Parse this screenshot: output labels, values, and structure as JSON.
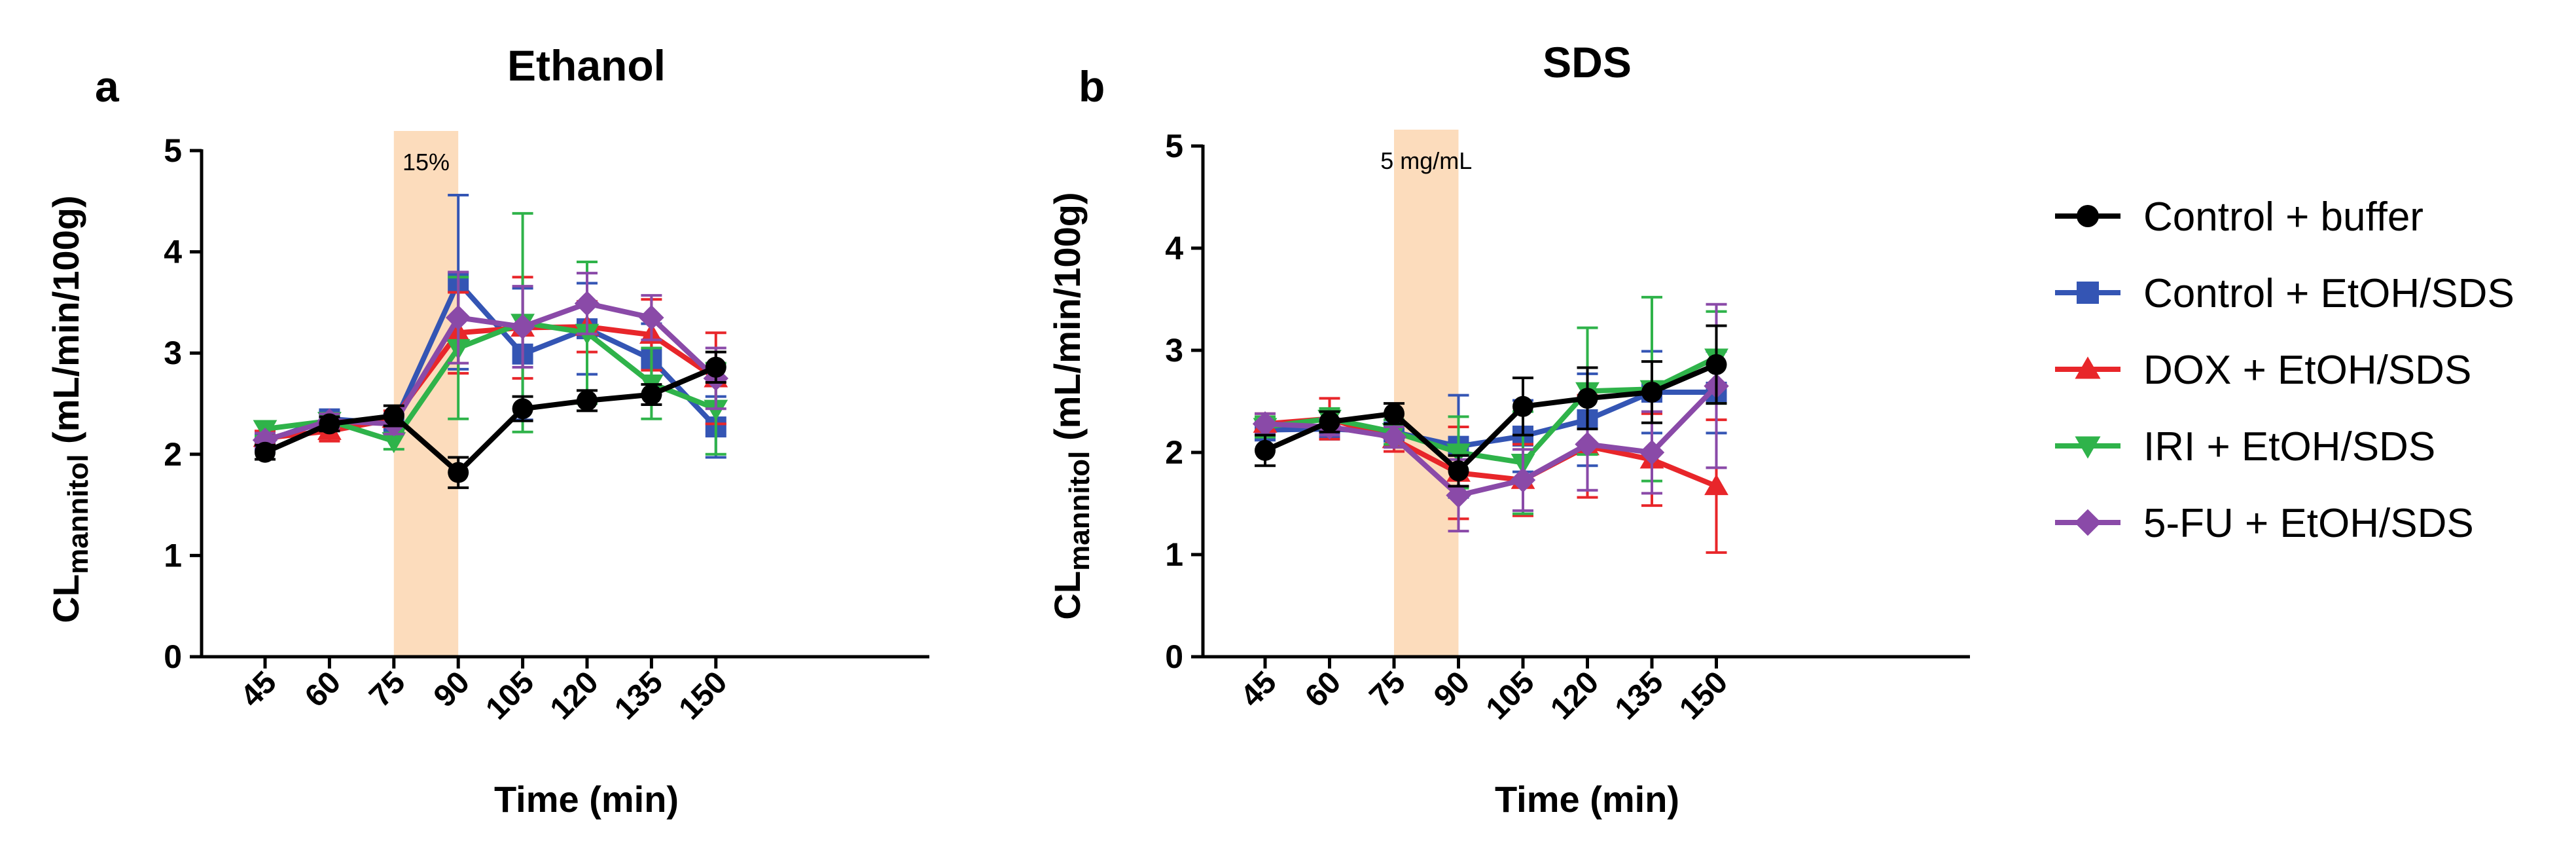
{
  "legend": {
    "entries": [
      {
        "label": "Control + buffer",
        "color": "#000000",
        "marker": "circle"
      },
      {
        "label": "Control + EtOH/SDS",
        "color": "#3455b4",
        "marker": "square"
      },
      {
        "label": "DOX + EtOH/SDS",
        "color": "#e8262a",
        "marker": "triangle-up"
      },
      {
        "label": "IRI + EtOH/SDS",
        "color": "#2fb34a",
        "marker": "triangle-down"
      },
      {
        "label": "5-FU + EtOH/SDS",
        "color": "#8a4aa8",
        "marker": "diamond"
      }
    ]
  },
  "chart_data": [
    {
      "panel_label": "a",
      "type": "line",
      "title": "Ethanol",
      "xlabel": "Time (min)",
      "ylabel_main": "CL",
      "ylabel_sub": "mannitol",
      "ylabel_unit": " (mL/min/100g)",
      "categories": [
        "45",
        "60",
        "75",
        "90",
        "105",
        "120",
        "135",
        "150"
      ],
      "yticks": [
        "0",
        "1",
        "2",
        "3",
        "4",
        "5"
      ],
      "ylim": [
        0,
        5
      ],
      "shaded_region": {
        "from_index": 2,
        "to_index": 3,
        "label": "15%",
        "color": "#fcdcbc"
      },
      "series": [
        {
          "name": "Control + buffer",
          "values": [
            2.02,
            2.3,
            2.38,
            1.82,
            2.45,
            2.53,
            2.59,
            2.86
          ],
          "errors": [
            0.07,
            0.07,
            0.1,
            0.15,
            0.12,
            0.1,
            0.1,
            0.15
          ]
        },
        {
          "name": "Control + EtOH/SDS",
          "values": [
            2.13,
            2.35,
            2.3,
            3.7,
            2.99,
            3.24,
            2.94,
            2.27
          ],
          "errors": [
            0.08,
            0.07,
            0.1,
            0.86,
            0.65,
            0.45,
            0.35,
            0.3
          ]
        },
        {
          "name": "DOX + EtOH/SDS",
          "values": [
            2.16,
            2.23,
            2.35,
            3.2,
            3.25,
            3.26,
            3.18,
            2.75
          ],
          "errors": [
            0.07,
            0.1,
            0.08,
            0.4,
            0.5,
            0.25,
            0.35,
            0.45
          ]
        },
        {
          "name": "IRI + EtOH/SDS",
          "values": [
            2.25,
            2.33,
            2.13,
            3.05,
            3.3,
            3.2,
            2.7,
            2.45
          ],
          "errors": [
            0.07,
            0.07,
            0.08,
            0.7,
            1.08,
            0.7,
            0.35,
            0.45
          ]
        },
        {
          "name": "5-FU + EtOH/SDS",
          "values": [
            2.14,
            2.33,
            2.3,
            3.35,
            3.26,
            3.49,
            3.35,
            2.75
          ],
          "errors": [
            0.07,
            0.07,
            0.1,
            0.45,
            0.4,
            0.3,
            0.22,
            0.3
          ]
        }
      ]
    },
    {
      "panel_label": "b",
      "type": "line",
      "title": "SDS",
      "xlabel": "Time (min)",
      "ylabel_main": "CL",
      "ylabel_sub": "mannitol",
      "ylabel_unit": " (mL/min/100g)",
      "categories": [
        "45",
        "60",
        "75",
        "90",
        "105",
        "120",
        "135",
        "150"
      ],
      "yticks": [
        "0",
        "1",
        "2",
        "3",
        "4",
        "5"
      ],
      "ylim": [
        0,
        5
      ],
      "shaded_region": {
        "from_index": 2,
        "to_index": 3,
        "label": "5 mg/mL",
        "color": "#fcdcbc"
      },
      "series": [
        {
          "name": "Control + buffer",
          "values": [
            2.02,
            2.3,
            2.38,
            1.82,
            2.45,
            2.53,
            2.59,
            2.86
          ],
          "errors": [
            0.15,
            0.1,
            0.1,
            0.15,
            0.28,
            0.3,
            0.3,
            0.38
          ]
        },
        {
          "name": "Control + EtOH/SDS",
          "values": [
            2.22,
            2.23,
            2.2,
            2.06,
            2.16,
            2.32,
            2.59,
            2.59
          ],
          "errors": [
            0.1,
            0.1,
            0.12,
            0.5,
            0.35,
            0.45,
            0.4,
            0.4
          ]
        },
        {
          "name": "DOX + EtOH/SDS",
          "values": [
            2.28,
            2.33,
            2.13,
            1.8,
            1.73,
            2.06,
            1.93,
            1.67
          ],
          "errors": [
            0.1,
            0.2,
            0.12,
            0.45,
            0.35,
            0.5,
            0.45,
            0.65
          ]
        },
        {
          "name": "IRI + EtOH/SDS",
          "values": [
            2.25,
            2.33,
            2.2,
            2.0,
            1.9,
            2.6,
            2.62,
            2.93
          ],
          "errors": [
            0.1,
            0.1,
            0.12,
            0.35,
            0.5,
            0.62,
            0.9,
            0.45
          ]
        },
        {
          "name": "5-FU + EtOH/SDS",
          "values": [
            2.28,
            2.25,
            2.15,
            1.58,
            1.73,
            2.08,
            2.0,
            2.65
          ],
          "errors": [
            0.1,
            0.08,
            0.1,
            0.35,
            0.3,
            0.45,
            0.4,
            0.8
          ]
        }
      ]
    }
  ]
}
